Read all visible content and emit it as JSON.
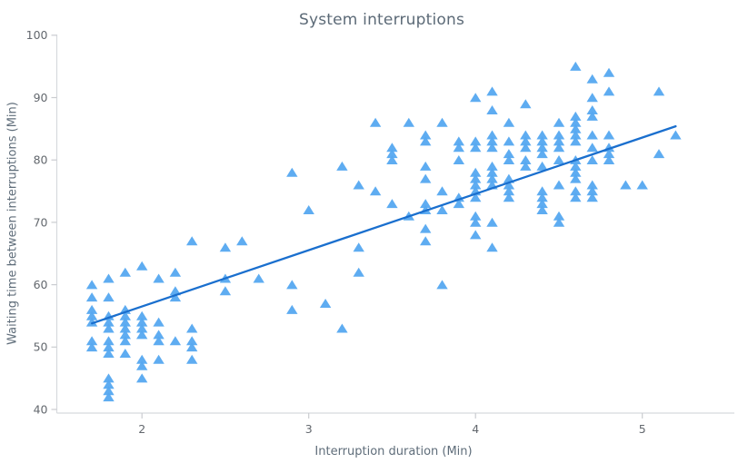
{
  "chart_data": {
    "type": "scatter",
    "title": "System interruptions",
    "xlabel": "Interruption duration (Min)",
    "ylabel": "Waiting time between interruptions (Min)",
    "xlim": [
      1.49,
      5.55
    ],
    "ylim": [
      39.4,
      100.4
    ],
    "x_ticks": [
      2,
      3,
      4,
      5
    ],
    "y_ticks": [
      40,
      50,
      60,
      70,
      80,
      90,
      100
    ],
    "grid": false,
    "legend_position": "none",
    "marker": {
      "shape": "triangle-up",
      "color": "#55a8f0"
    },
    "trend_line": {
      "x1": 1.7,
      "y1": 53.8,
      "x2": 5.2,
      "y2": 85.4,
      "color": "#1a6fce"
    },
    "points": [
      [
        1.7,
        60
      ],
      [
        1.7,
        58
      ],
      [
        1.7,
        56
      ],
      [
        1.7,
        55
      ],
      [
        1.7,
        54
      ],
      [
        1.7,
        51
      ],
      [
        1.7,
        50
      ],
      [
        1.8,
        61
      ],
      [
        1.8,
        58
      ],
      [
        1.8,
        55
      ],
      [
        1.8,
        54
      ],
      [
        1.8,
        53
      ],
      [
        1.8,
        51
      ],
      [
        1.8,
        50
      ],
      [
        1.8,
        49
      ],
      [
        1.8,
        45
      ],
      [
        1.8,
        44
      ],
      [
        1.8,
        43
      ],
      [
        1.8,
        42
      ],
      [
        1.9,
        62
      ],
      [
        1.9,
        56
      ],
      [
        1.9,
        55
      ],
      [
        1.9,
        54
      ],
      [
        1.9,
        53
      ],
      [
        1.9,
        52
      ],
      [
        1.9,
        51
      ],
      [
        1.9,
        49
      ],
      [
        2.0,
        63
      ],
      [
        2.0,
        55
      ],
      [
        2.0,
        54
      ],
      [
        2.0,
        53
      ],
      [
        2.0,
        52
      ],
      [
        2.0,
        48
      ],
      [
        2.0,
        47
      ],
      [
        2.0,
        45
      ],
      [
        2.1,
        61
      ],
      [
        2.1,
        54
      ],
      [
        2.1,
        52
      ],
      [
        2.1,
        51
      ],
      [
        2.1,
        48
      ],
      [
        2.2,
        62
      ],
      [
        2.2,
        59
      ],
      [
        2.2,
        58
      ],
      [
        2.2,
        51
      ],
      [
        2.3,
        67
      ],
      [
        2.3,
        53
      ],
      [
        2.3,
        51
      ],
      [
        2.3,
        50
      ],
      [
        2.3,
        48
      ],
      [
        2.5,
        66
      ],
      [
        2.5,
        61
      ],
      [
        2.5,
        59
      ],
      [
        2.6,
        67
      ],
      [
        2.7,
        61
      ],
      [
        2.9,
        78
      ],
      [
        2.9,
        60
      ],
      [
        2.9,
        56
      ],
      [
        3.0,
        72
      ],
      [
        3.1,
        57
      ],
      [
        3.2,
        79
      ],
      [
        3.2,
        53
      ],
      [
        3.3,
        76
      ],
      [
        3.3,
        66
      ],
      [
        3.3,
        62
      ],
      [
        3.4,
        86
      ],
      [
        3.4,
        75
      ],
      [
        3.5,
        82
      ],
      [
        3.5,
        81
      ],
      [
        3.5,
        80
      ],
      [
        3.5,
        73
      ],
      [
        3.6,
        86
      ],
      [
        3.6,
        71
      ],
      [
        3.7,
        84
      ],
      [
        3.7,
        83
      ],
      [
        3.7,
        79
      ],
      [
        3.7,
        77
      ],
      [
        3.7,
        73
      ],
      [
        3.7,
        72
      ],
      [
        3.7,
        69
      ],
      [
        3.7,
        67
      ],
      [
        3.8,
        86
      ],
      [
        3.8,
        75
      ],
      [
        3.8,
        72
      ],
      [
        3.8,
        60
      ],
      [
        3.9,
        83
      ],
      [
        3.9,
        82
      ],
      [
        3.9,
        80
      ],
      [
        3.9,
        74
      ],
      [
        3.9,
        73
      ],
      [
        4.0,
        90
      ],
      [
        4.0,
        83
      ],
      [
        4.0,
        82
      ],
      [
        4.0,
        78
      ],
      [
        4.0,
        77
      ],
      [
        4.0,
        76
      ],
      [
        4.0,
        75
      ],
      [
        4.0,
        74
      ],
      [
        4.0,
        71
      ],
      [
        4.0,
        70
      ],
      [
        4.0,
        68
      ],
      [
        4.1,
        91
      ],
      [
        4.1,
        88
      ],
      [
        4.1,
        84
      ],
      [
        4.1,
        83
      ],
      [
        4.1,
        82
      ],
      [
        4.1,
        79
      ],
      [
        4.1,
        78
      ],
      [
        4.1,
        77
      ],
      [
        4.1,
        76
      ],
      [
        4.1,
        70
      ],
      [
        4.1,
        66
      ],
      [
        4.2,
        86
      ],
      [
        4.2,
        83
      ],
      [
        4.2,
        81
      ],
      [
        4.2,
        80
      ],
      [
        4.2,
        77
      ],
      [
        4.2,
        76
      ],
      [
        4.2,
        75
      ],
      [
        4.2,
        74
      ],
      [
        4.3,
        89
      ],
      [
        4.3,
        84
      ],
      [
        4.3,
        83
      ],
      [
        4.3,
        82
      ],
      [
        4.3,
        80
      ],
      [
        4.3,
        79
      ],
      [
        4.4,
        84
      ],
      [
        4.4,
        83
      ],
      [
        4.4,
        82
      ],
      [
        4.4,
        81
      ],
      [
        4.4,
        79
      ],
      [
        4.4,
        75
      ],
      [
        4.4,
        74
      ],
      [
        4.4,
        73
      ],
      [
        4.4,
        72
      ],
      [
        4.5,
        86
      ],
      [
        4.5,
        84
      ],
      [
        4.5,
        83
      ],
      [
        4.5,
        82
      ],
      [
        4.5,
        80
      ],
      [
        4.5,
        76
      ],
      [
        4.5,
        71
      ],
      [
        4.5,
        70
      ],
      [
        4.6,
        95
      ],
      [
        4.6,
        87
      ],
      [
        4.6,
        86
      ],
      [
        4.6,
        85
      ],
      [
        4.6,
        84
      ],
      [
        4.6,
        83
      ],
      [
        4.6,
        80
      ],
      [
        4.6,
        79
      ],
      [
        4.6,
        78
      ],
      [
        4.6,
        77
      ],
      [
        4.6,
        75
      ],
      [
        4.6,
        74
      ],
      [
        4.7,
        93
      ],
      [
        4.7,
        90
      ],
      [
        4.7,
        88
      ],
      [
        4.7,
        87
      ],
      [
        4.7,
        84
      ],
      [
        4.7,
        82
      ],
      [
        4.7,
        80
      ],
      [
        4.7,
        76
      ],
      [
        4.7,
        75
      ],
      [
        4.7,
        74
      ],
      [
        4.8,
        94
      ],
      [
        4.8,
        91
      ],
      [
        4.8,
        84
      ],
      [
        4.8,
        82
      ],
      [
        4.8,
        81
      ],
      [
        4.8,
        80
      ],
      [
        4.9,
        76
      ],
      [
        5.0,
        76
      ],
      [
        5.1,
        91
      ],
      [
        5.1,
        81
      ],
      [
        5.2,
        84
      ]
    ]
  },
  "colors": {
    "marker": "#55a8f0",
    "trend_line": "#1a6fce",
    "axis_line": "#d7d9dd",
    "tick_mark": "#caccd0",
    "tick_label": "#63686e",
    "title_text": "#5c6a77",
    "axis_title_text": "#5f6d7a",
    "background": "#ffffff"
  }
}
